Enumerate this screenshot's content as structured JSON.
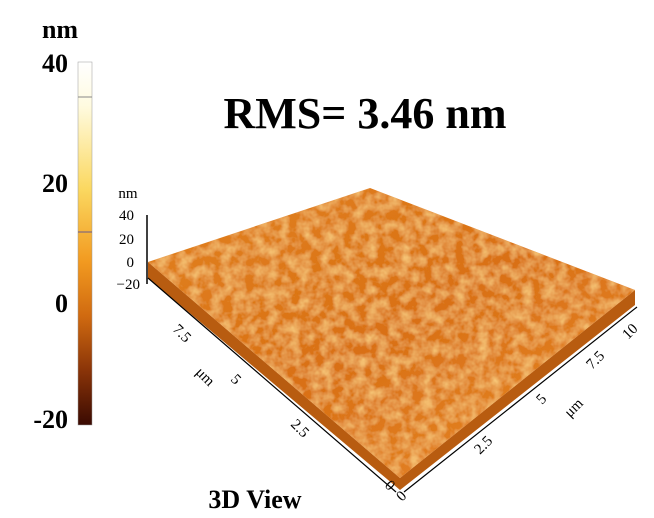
{
  "colorbar": {
    "unit": "nm",
    "ticks": [
      "40",
      "20",
      "0",
      "-20"
    ]
  },
  "title": "RMS= 3.46 nm",
  "surface": {
    "z_unit": "nm",
    "z_ticks": [
      "40",
      "20",
      "0",
      "−20"
    ],
    "left_axis": {
      "unit": "μm",
      "ticks": [
        "7.5",
        "5",
        "2.5",
        "0"
      ]
    },
    "right_axis": {
      "unit": "μm",
      "ticks": [
        "0",
        "2.5",
        "5",
        "7.5",
        "10"
      ]
    }
  },
  "caption": "3D View"
}
